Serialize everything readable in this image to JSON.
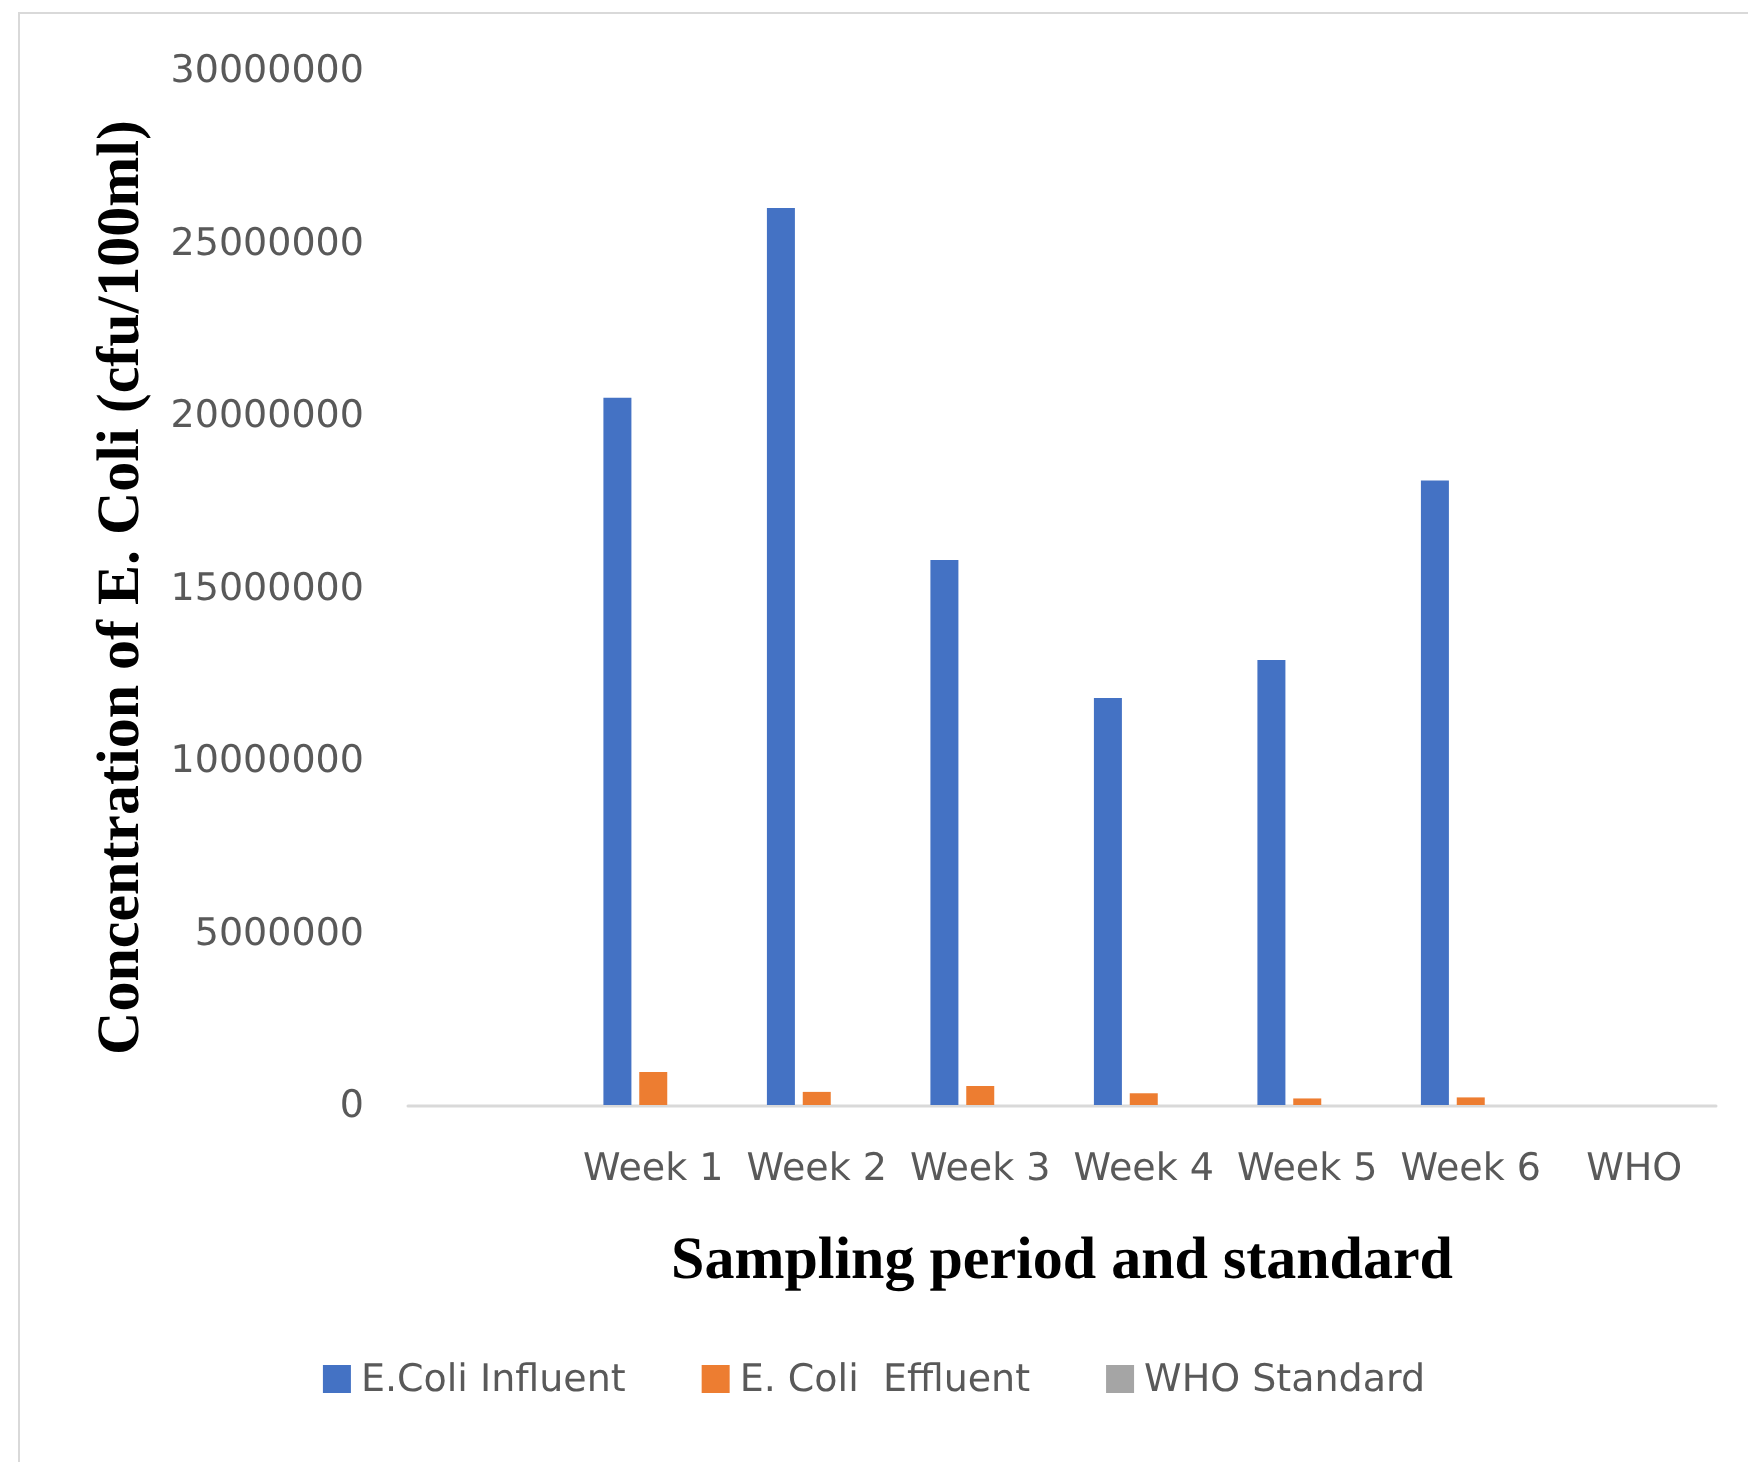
{
  "chart_data": {
    "type": "bar",
    "xlabel": "Sampling period and standard",
    "ylabel": "Concentration of E. Coli (cfu/100ml)",
    "categories": [
      null,
      "Week 1",
      "Week 2",
      "Week 3",
      "Week 4",
      "Week 5",
      "Week 6",
      "WHO"
    ],
    "series": [
      {
        "name": "E.Coli Influent",
        "color": "#4472c4",
        "values": [
          null,
          20500000,
          26000000,
          15800000,
          11800000,
          12900000,
          18100000,
          null
        ]
      },
      {
        "name": "E. Coli  Effluent",
        "color": "#ed7d31",
        "values": [
          null,
          960000,
          380000,
          550000,
          340000,
          190000,
          220000,
          null
        ]
      },
      {
        "name": "WHO Standard",
        "color": "#a5a5a5",
        "values": [
          null,
          null,
          null,
          null,
          null,
          null,
          null,
          0
        ]
      }
    ],
    "ylim": [
      0,
      30000000
    ],
    "yticks": [
      0,
      5000000,
      10000000,
      15000000,
      20000000,
      25000000,
      30000000
    ],
    "legend": "bottom"
  }
}
